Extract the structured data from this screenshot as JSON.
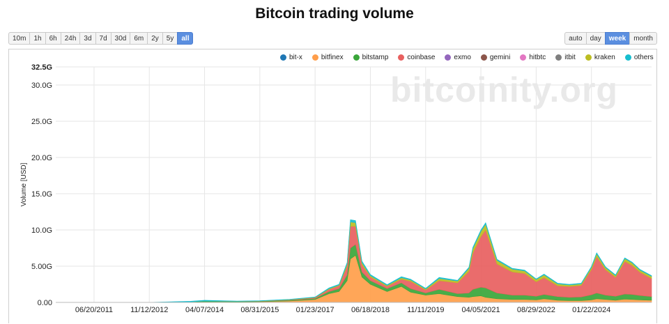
{
  "range_buttons": [
    {
      "label": "10m",
      "active": false
    },
    {
      "label": "1h",
      "active": false
    },
    {
      "label": "6h",
      "active": false
    },
    {
      "label": "24h",
      "active": false
    },
    {
      "label": "3d",
      "active": false
    },
    {
      "label": "7d",
      "active": false
    },
    {
      "label": "30d",
      "active": false
    },
    {
      "label": "6m",
      "active": false
    },
    {
      "label": "2y",
      "active": false
    },
    {
      "label": "5y",
      "active": false
    },
    {
      "label": "all",
      "active": true
    }
  ],
  "resolution_buttons": [
    {
      "label": "auto",
      "active": false
    },
    {
      "label": "day",
      "active": false
    },
    {
      "label": "week",
      "active": true
    },
    {
      "label": "month",
      "active": false
    }
  ],
  "watermark": "bitcoinity.org",
  "chart_data": {
    "type": "area",
    "stacked": true,
    "title": "Bitcoin trading volume",
    "ylabel": "Volume [USD]",
    "ylim": [
      0,
      32.5
    ],
    "y_unit": "G",
    "ytick_values": [
      0,
      5,
      10,
      15,
      20,
      25,
      30,
      32.5
    ],
    "ytick_labels": [
      "0.00",
      "5.00G",
      "10.0G",
      "15.0G",
      "20.0G",
      "25.0G",
      "30.0G",
      "32.5G"
    ],
    "xlim": [
      "2010-07-01",
      "2025-07-31"
    ],
    "xtick_values": [
      "2011-06-20",
      "2012-11-12",
      "2014-04-07",
      "2015-08-31",
      "2017-01-23",
      "2018-06-18",
      "2019-11-11",
      "2021-04-05",
      "2022-08-29",
      "2024-01-22"
    ],
    "xtick_labels": [
      "06/20/2011",
      "11/12/2012",
      "04/07/2014",
      "08/31/2015",
      "01/23/2017",
      "06/18/2018",
      "11/11/2019",
      "04/05/2021",
      "08/29/2022",
      "01/22/2024"
    ],
    "grid": true,
    "legend_position": "top-right",
    "legend": [
      "bit-x",
      "bitfinex",
      "bitstamp",
      "coinbase",
      "exmo",
      "gemini",
      "hitbtc",
      "itbit",
      "kraken",
      "others"
    ],
    "colors": {
      "bit-x": "#1f77b4",
      "bitfinex": "#ff9e4a",
      "bitstamp": "#3aa63a",
      "coinbase": "#e8605f",
      "exmo": "#9467bd",
      "gemini": "#8c564b",
      "hitbtc": "#e377c2",
      "itbit": "#7f7f7f",
      "kraken": "#bcbd22",
      "others": "#17becf"
    },
    "x": [
      "2010-07-01",
      "2011-06-20",
      "2012-11-12",
      "2013-12-01",
      "2014-04-07",
      "2015-02-01",
      "2015-08-31",
      "2016-06-01",
      "2017-01-23",
      "2017-06-01",
      "2017-09-01",
      "2017-11-15",
      "2017-12-15",
      "2018-02-01",
      "2018-04-01",
      "2018-06-18",
      "2018-11-20",
      "2019-04-01",
      "2019-06-25",
      "2019-11-11",
      "2020-03-15",
      "2020-09-01",
      "2020-12-15",
      "2021-01-20",
      "2021-04-05",
      "2021-05-19",
      "2021-09-01",
      "2022-01-20",
      "2022-05-15",
      "2022-08-29",
      "2022-11-10",
      "2023-03-15",
      "2023-07-01",
      "2023-10-20",
      "2024-01-22",
      "2024-03-10",
      "2024-06-01",
      "2024-09-01",
      "2024-11-25",
      "2025-02-01",
      "2025-04-15",
      "2025-07-31"
    ],
    "series": [
      {
        "name": "bitfinex",
        "values": [
          0,
          0,
          0,
          0.05,
          0.1,
          0.08,
          0.1,
          0.2,
          0.4,
          1.2,
          1.5,
          3,
          6,
          6.5,
          3.5,
          2.5,
          1.5,
          2.2,
          1.4,
          1,
          1.2,
          0.8,
          0.7,
          0.8,
          0.9,
          0.7,
          0.5,
          0.4,
          0.4,
          0.35,
          0.5,
          0.3,
          0.25,
          0.25,
          0.35,
          0.5,
          0.4,
          0.3,
          0.45,
          0.4,
          0.35,
          0.3
        ]
      },
      {
        "name": "bitstamp",
        "values": [
          0,
          0,
          0,
          0.03,
          0.08,
          0.05,
          0.06,
          0.1,
          0.15,
          0.3,
          0.4,
          0.8,
          1.5,
          1.5,
          0.7,
          0.5,
          0.4,
          0.5,
          0.5,
          0.3,
          0.6,
          0.4,
          0.6,
          1,
          1.2,
          1.3,
          0.8,
          0.6,
          0.6,
          0.5,
          0.6,
          0.5,
          0.45,
          0.5,
          0.7,
          0.8,
          0.6,
          0.55,
          0.7,
          0.7,
          0.6,
          0.5
        ]
      },
      {
        "name": "coinbase",
        "values": [
          0,
          0,
          0,
          0,
          0,
          0,
          0.02,
          0.05,
          0.1,
          0.3,
          0.4,
          1.2,
          3,
          2.5,
          1,
          0.5,
          0.3,
          0.5,
          1,
          0.4,
          1.2,
          1.5,
          3,
          5,
          7,
          8,
          4,
          3.2,
          3,
          2,
          2.3,
          1.5,
          1.5,
          1.6,
          3.5,
          5,
          3.5,
          2.6,
          4.5,
          4,
          3.2,
          2.5
        ]
      },
      {
        "name": "kraken",
        "values": [
          0,
          0,
          0,
          0,
          0,
          0.01,
          0.02,
          0.03,
          0.05,
          0.1,
          0.1,
          0.3,
          0.6,
          0.5,
          0.3,
          0.2,
          0.15,
          0.2,
          0.2,
          0.15,
          0.3,
          0.25,
          0.4,
          0.6,
          0.7,
          0.8,
          0.5,
          0.4,
          0.35,
          0.3,
          0.4,
          0.25,
          0.2,
          0.2,
          0.3,
          0.4,
          0.3,
          0.25,
          0.4,
          0.35,
          0.3,
          0.3
        ]
      },
      {
        "name": "others",
        "values": [
          0,
          0,
          0.01,
          0.08,
          0.12,
          0.05,
          0.04,
          0.05,
          0.05,
          0.1,
          0.1,
          0.2,
          0.3,
          0.3,
          0.2,
          0.15,
          0.1,
          0.15,
          0.1,
          0.1,
          0.15,
          0.1,
          0.15,
          0.2,
          0.2,
          0.2,
          0.15,
          0.1,
          0.1,
          0.1,
          0.1,
          0.1,
          0.1,
          0.1,
          0.1,
          0.15,
          0.1,
          0.1,
          0.1,
          0.1,
          0.1,
          0.1
        ]
      }
    ]
  }
}
